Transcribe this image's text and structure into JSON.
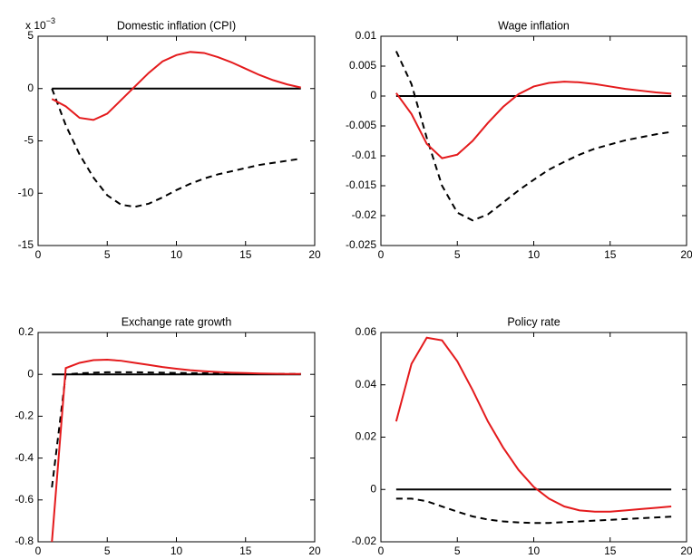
{
  "chart_data": [
    {
      "type": "line",
      "title": "Domestic inflation (CPI)",
      "y_scale_label": "x 10",
      "y_scale_exponent": "−3",
      "x": [
        1,
        2,
        3,
        4,
        5,
        6,
        7,
        8,
        9,
        10,
        11,
        12,
        13,
        14,
        15,
        16,
        17,
        18,
        19
      ],
      "series": [
        {
          "color": "#000000",
          "dash": false,
          "values": [
            0,
            0,
            0,
            0,
            0,
            0,
            0,
            0,
            0,
            0,
            0,
            0,
            0,
            0,
            0,
            0,
            0,
            0,
            0
          ]
        },
        {
          "color": "#000000",
          "dash": true,
          "values": [
            0,
            -3.5,
            -6.3,
            -8.5,
            -10.2,
            -11.1,
            -11.3,
            -11.0,
            -10.4,
            -9.7,
            -9.1,
            -8.6,
            -8.2,
            -7.9,
            -7.6,
            -7.3,
            -7.1,
            -6.9,
            -6.7
          ]
        },
        {
          "color": "#e41a1c",
          "dash": false,
          "values": [
            -1.0,
            -1.7,
            -2.8,
            -3.0,
            -2.4,
            -1.1,
            0.2,
            1.5,
            2.6,
            3.2,
            3.5,
            3.4,
            3.0,
            2.5,
            1.9,
            1.3,
            0.8,
            0.4,
            0.1
          ]
        }
      ],
      "xlim": [
        0,
        20
      ],
      "xticks": [
        0,
        5,
        10,
        15,
        20
      ],
      "ylim": [
        -15,
        5
      ],
      "yticks": [
        -15,
        -10,
        -5,
        0,
        5
      ]
    },
    {
      "type": "line",
      "title": "Wage inflation",
      "x": [
        1,
        2,
        3,
        4,
        5,
        6,
        7,
        8,
        9,
        10,
        11,
        12,
        13,
        14,
        15,
        16,
        17,
        18,
        19
      ],
      "series": [
        {
          "color": "#000000",
          "dash": false,
          "values": [
            0,
            0,
            0,
            0,
            0,
            0,
            0,
            0,
            0,
            0,
            0,
            0,
            0,
            0,
            0,
            0,
            0,
            0,
            0
          ]
        },
        {
          "color": "#000000",
          "dash": true,
          "values": [
            0.0075,
            0.002,
            -0.007,
            -0.015,
            -0.0195,
            -0.0208,
            -0.0198,
            -0.0178,
            -0.0158,
            -0.014,
            -0.0123,
            -0.011,
            -0.0098,
            -0.0088,
            -0.0081,
            -0.0074,
            -0.0069,
            -0.0064,
            -0.006
          ]
        },
        {
          "color": "#e41a1c",
          "dash": false,
          "values": [
            0.0005,
            -0.003,
            -0.008,
            -0.0104,
            -0.0098,
            -0.0075,
            -0.0045,
            -0.0018,
            0.0003,
            0.0016,
            0.0022,
            0.0024,
            0.0023,
            0.002,
            0.0016,
            0.0012,
            0.0009,
            0.0006,
            0.0004
          ]
        }
      ],
      "xlim": [
        0,
        20
      ],
      "xticks": [
        0,
        5,
        10,
        15,
        20
      ],
      "ylim": [
        -0.025,
        0.01
      ],
      "yticks": [
        -0.025,
        -0.02,
        -0.015,
        -0.01,
        -0.005,
        0,
        0.005,
        0.01
      ]
    },
    {
      "type": "line",
      "title": "Exchange rate growth",
      "x": [
        1,
        2,
        3,
        4,
        5,
        6,
        7,
        8,
        9,
        10,
        11,
        12,
        13,
        14,
        15,
        16,
        17,
        18,
        19
      ],
      "series": [
        {
          "color": "#000000",
          "dash": false,
          "values": [
            0,
            0,
            0,
            0,
            0,
            0,
            0,
            0,
            0,
            0,
            0,
            0,
            0,
            0,
            0,
            0,
            0,
            0,
            0
          ]
        },
        {
          "color": "#000000",
          "dash": true,
          "values": [
            -0.54,
            0.0,
            0.005,
            0.008,
            0.01,
            0.01,
            0.01,
            0.009,
            0.008,
            0.007,
            0.006,
            0.005,
            0.004,
            0.004,
            0.003,
            0.003,
            0.002,
            0.002,
            0.002
          ]
        },
        {
          "color": "#e41a1c",
          "dash": false,
          "values": [
            -0.8,
            0.03,
            0.055,
            0.068,
            0.07,
            0.065,
            0.055,
            0.045,
            0.035,
            0.027,
            0.02,
            0.015,
            0.011,
            0.008,
            0.006,
            0.004,
            0.003,
            0.002,
            0.002
          ]
        }
      ],
      "xlim": [
        0,
        20
      ],
      "xticks": [
        0,
        5,
        10,
        15,
        20
      ],
      "ylim": [
        -0.8,
        0.2
      ],
      "yticks": [
        -0.8,
        -0.6,
        -0.4,
        -0.2,
        0,
        0.2
      ]
    },
    {
      "type": "line",
      "title": "Policy rate",
      "x": [
        1,
        2,
        3,
        4,
        5,
        6,
        7,
        8,
        9,
        10,
        11,
        12,
        13,
        14,
        15,
        16,
        17,
        18,
        19
      ],
      "series": [
        {
          "color": "#000000",
          "dash": false,
          "values": [
            0,
            0,
            0,
            0,
            0,
            0,
            0,
            0,
            0,
            0,
            0,
            0,
            0,
            0,
            0,
            0,
            0,
            0,
            0
          ]
        },
        {
          "color": "#000000",
          "dash": true,
          "values": [
            -0.0035,
            -0.0035,
            -0.0045,
            -0.0065,
            -0.0085,
            -0.0103,
            -0.0115,
            -0.0122,
            -0.0126,
            -0.0128,
            -0.0128,
            -0.0125,
            -0.0122,
            -0.0119,
            -0.0116,
            -0.0113,
            -0.011,
            -0.0107,
            -0.0104
          ]
        },
        {
          "color": "#e41a1c",
          "dash": false,
          "values": [
            0.026,
            0.048,
            0.058,
            0.057,
            0.049,
            0.038,
            0.026,
            0.016,
            0.0075,
            0.001,
            -0.0035,
            -0.0065,
            -0.008,
            -0.0085,
            -0.0085,
            -0.008,
            -0.0075,
            -0.007,
            -0.0065
          ]
        }
      ],
      "xlim": [
        0,
        20
      ],
      "xticks": [
        0,
        5,
        10,
        15,
        20
      ],
      "ylim": [
        -0.02,
        0.06
      ],
      "yticks": [
        -0.02,
        0,
        0.02,
        0.04,
        0.06
      ]
    }
  ]
}
